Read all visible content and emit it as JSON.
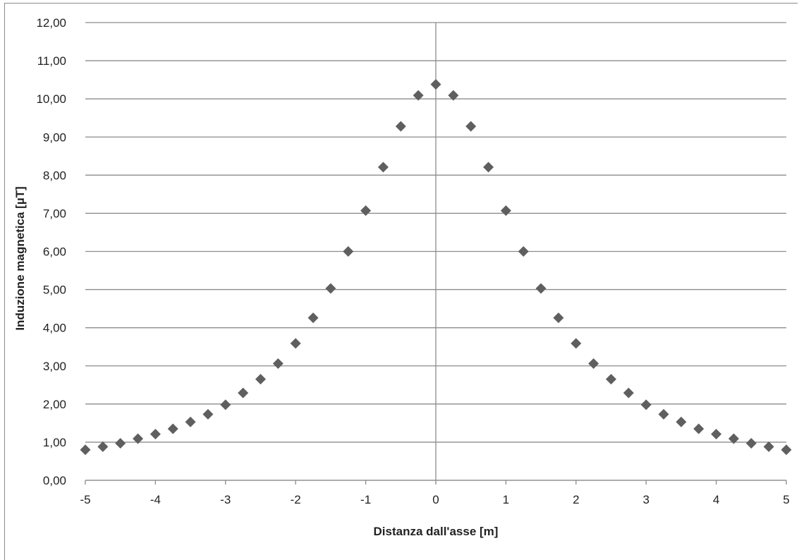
{
  "chart_data": {
    "type": "scatter",
    "title": "",
    "xlabel": "Distanza dall'asse [m]",
    "ylabel": "Induzione magnetica [µT]",
    "xlim": [
      -5,
      5
    ],
    "ylim": [
      0,
      12
    ],
    "x_ticks": [
      "-5",
      "-4",
      "-3",
      "-2",
      "-1",
      "0",
      "1",
      "2",
      "3",
      "4",
      "5"
    ],
    "x_tick_values": [
      -5,
      -4,
      -3,
      -2,
      -1,
      0,
      1,
      2,
      3,
      4,
      5
    ],
    "y_ticks": [
      "0,00",
      "1,00",
      "2,00",
      "3,00",
      "4,00",
      "5,00",
      "6,00",
      "7,00",
      "8,00",
      "9,00",
      "10,00",
      "11,00",
      "12,00"
    ],
    "y_tick_values": [
      0,
      1,
      2,
      3,
      4,
      5,
      6,
      7,
      8,
      9,
      10,
      11,
      12
    ],
    "grid": "horizontal",
    "marker": "diamond",
    "marker_color": "#5f5f5f",
    "grid_color": "#8c8c8c",
    "series": [
      {
        "x": [
          -5,
          -4.75,
          -4.5,
          -4.25,
          -4,
          -3.75,
          -3.5,
          -3.25,
          -3,
          -2.75,
          -2.5,
          -2.25,
          -2,
          -1.75,
          -1.5,
          -1.25,
          -1,
          -0.75,
          -0.5,
          -0.25,
          0,
          0.25,
          0.5,
          0.75,
          1,
          1.25,
          1.5,
          1.75,
          2,
          2.25,
          2.5,
          2.75,
          3,
          3.25,
          3.5,
          3.75,
          4,
          4.25,
          4.5,
          4.75,
          5
        ],
        "y": [
          0.8,
          0.88,
          0.97,
          1.09,
          1.21,
          1.35,
          1.53,
          1.73,
          1.98,
          2.29,
          2.65,
          3.06,
          3.59,
          4.26,
          5.03,
          6.0,
          7.07,
          8.21,
          9.28,
          10.09,
          10.38,
          10.09,
          9.28,
          8.21,
          7.07,
          6.0,
          5.03,
          4.26,
          3.59,
          3.06,
          2.65,
          2.29,
          1.98,
          1.73,
          1.53,
          1.35,
          1.21,
          1.09,
          0.97,
          0.88,
          0.8
        ]
      }
    ]
  }
}
